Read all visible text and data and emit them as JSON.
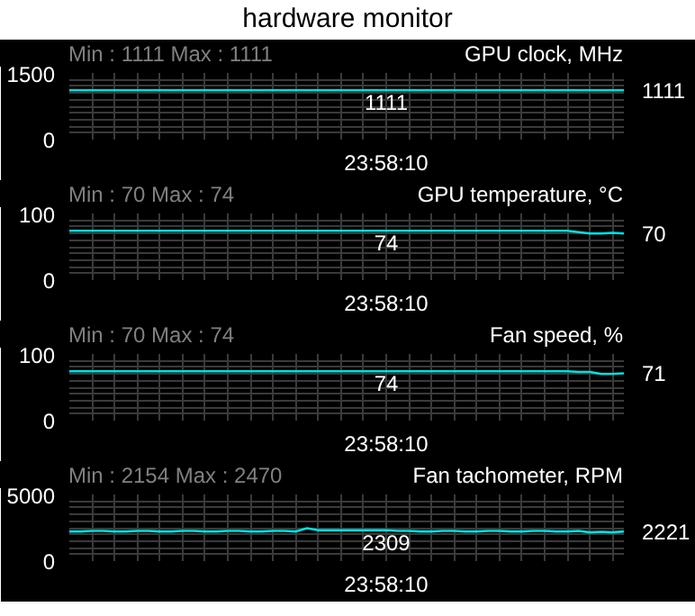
{
  "chart_data": [
    {
      "type": "line",
      "title": "hardware monitor",
      "subtitle": "GPU clock, MHz",
      "annotations": [
        "Min : 1111   Max : 1111",
        "23:58:10"
      ],
      "categories": [
        null,
        null,
        null,
        null,
        null,
        null,
        null,
        null,
        null,
        null,
        null,
        null,
        null,
        null,
        null,
        null,
        null,
        null,
        null,
        null,
        null,
        null,
        null,
        null,
        null,
        null,
        null,
        null,
        null,
        null,
        null,
        null,
        null,
        null,
        null,
        null,
        null,
        null,
        null,
        null,
        null,
        null,
        null,
        null,
        null,
        null,
        null,
        null,
        null,
        null
      ],
      "values": [
        1111,
        1111,
        1111,
        1111,
        1111,
        1111,
        1111,
        1111,
        1111,
        1111,
        1111,
        1111,
        1111,
        1111,
        1111,
        1111,
        1111,
        1111,
        1111,
        1111,
        1111,
        1111,
        1111,
        1111,
        1111,
        1111,
        1111,
        1111,
        1111,
        1111,
        1111,
        1111,
        1111,
        1111,
        1111,
        1111,
        1111,
        1111,
        1111,
        1111,
        1111,
        1111,
        1111,
        1111,
        1111,
        1111,
        1111,
        1111,
        1111,
        1111
      ],
      "value_labels": [
        null,
        null,
        null,
        null,
        null,
        null,
        null,
        null,
        null,
        null,
        null,
        null,
        null,
        null,
        null,
        null,
        null,
        null,
        null,
        null,
        null,
        null,
        null,
        null,
        null,
        null,
        null,
        null,
        "1111",
        null,
        null,
        null,
        null,
        null,
        null,
        null,
        null,
        null,
        null,
        null,
        null,
        null,
        null,
        null,
        null,
        null,
        null,
        null,
        null,
        "1111"
      ],
      "color": "#00e0e0",
      "ylim": [
        0,
        1500
      ],
      "yticks": [
        0,
        {
          "value": 150,
          "label": null
        },
        {
          "value": 300,
          "label": null
        },
        {
          "value": 450,
          "label": null
        },
        {
          "value": 600,
          "label": null
        },
        {
          "value": 750,
          "label": null
        },
        {
          "value": 900,
          "label": null
        },
        {
          "value": 1050,
          "label": null
        },
        {
          "value": 1200,
          "label": null
        },
        {
          "value": 1350,
          "label": null
        },
        1500
      ],
      "grid": true
    },
    {
      "type": "line",
      "subtitle": "GPU temperature, °C",
      "annotations": [
        "Min : 70   Max : 74",
        "23:58:10"
      ],
      "categories": [
        null,
        null,
        null,
        null,
        null,
        null,
        null,
        null,
        null,
        null,
        null,
        null,
        null,
        null,
        null,
        null,
        null,
        null,
        null,
        null,
        null,
        null,
        null,
        null,
        null,
        null,
        null,
        null,
        null,
        null,
        null,
        null,
        null,
        null,
        null,
        null,
        null,
        null,
        null,
        null,
        null,
        null,
        null,
        null,
        null,
        null,
        null,
        null,
        null,
        null
      ],
      "values": [
        74,
        74,
        74,
        74,
        74,
        74,
        74,
        74,
        74,
        74,
        74,
        74,
        74,
        74,
        74,
        74,
        74,
        74,
        74,
        74,
        74,
        74,
        74,
        74,
        74,
        74,
        74,
        74,
        74,
        74,
        74,
        74,
        74,
        74,
        74,
        74,
        74,
        74,
        74,
        74,
        74,
        74,
        74,
        74,
        74,
        72,
        70,
        70,
        71,
        70
      ],
      "value_labels": [
        null,
        null,
        null,
        null,
        null,
        null,
        null,
        null,
        null,
        null,
        null,
        null,
        null,
        null,
        null,
        null,
        null,
        null,
        null,
        null,
        null,
        null,
        null,
        null,
        null,
        null,
        null,
        null,
        "74",
        null,
        null,
        null,
        null,
        null,
        null,
        null,
        null,
        null,
        null,
        null,
        null,
        null,
        null,
        null,
        null,
        null,
        null,
        null,
        null,
        "70"
      ],
      "color": "#00e0e0",
      "ylim": [
        0,
        100
      ],
      "yticks": [
        0,
        {
          "value": 10,
          "label": null
        },
        {
          "value": 20,
          "label": null
        },
        {
          "value": 30,
          "label": null
        },
        {
          "value": 40,
          "label": null
        },
        {
          "value": 50,
          "label": null
        },
        {
          "value": 60,
          "label": null
        },
        {
          "value": 70,
          "label": null
        },
        {
          "value": 80,
          "label": null
        },
        {
          "value": 90,
          "label": null
        },
        100
      ],
      "grid": true
    },
    {
      "type": "line",
      "subtitle": "Fan speed, %",
      "annotations": [
        "Min : 70   Max : 74",
        "23:58:10"
      ],
      "categories": [
        null,
        null,
        null,
        null,
        null,
        null,
        null,
        null,
        null,
        null,
        null,
        null,
        null,
        null,
        null,
        null,
        null,
        null,
        null,
        null,
        null,
        null,
        null,
        null,
        null,
        null,
        null,
        null,
        null,
        null,
        null,
        null,
        null,
        null,
        null,
        null,
        null,
        null,
        null,
        null,
        null,
        null,
        null,
        null,
        null,
        null,
        null,
        null,
        null,
        null
      ],
      "values": [
        74,
        74,
        74,
        74,
        74,
        74,
        74,
        74,
        74,
        74,
        74,
        74,
        74,
        74,
        74,
        74,
        74,
        74,
        74,
        74,
        74,
        74,
        74,
        74,
        74,
        74,
        74,
        74,
        74,
        74,
        74,
        74,
        74,
        74,
        74,
        74,
        74,
        74,
        74,
        74,
        74,
        74,
        74,
        74,
        74,
        73,
        73,
        70,
        70,
        71
      ],
      "value_labels": [
        null,
        null,
        null,
        null,
        null,
        null,
        null,
        null,
        null,
        null,
        null,
        null,
        null,
        null,
        null,
        null,
        null,
        null,
        null,
        null,
        null,
        null,
        null,
        null,
        null,
        null,
        null,
        null,
        "74",
        null,
        null,
        null,
        null,
        null,
        null,
        null,
        null,
        null,
        null,
        null,
        null,
        null,
        null,
        null,
        null,
        null,
        null,
        null,
        null,
        "71"
      ],
      "color": "#00e0e0",
      "ylim": [
        0,
        100
      ],
      "yticks": [
        0,
        {
          "value": 10,
          "label": null
        },
        {
          "value": 20,
          "label": null
        },
        {
          "value": 30,
          "label": null
        },
        {
          "value": 40,
          "label": null
        },
        {
          "value": 50,
          "label": null
        },
        {
          "value": 60,
          "label": null
        },
        {
          "value": 70,
          "label": null
        },
        {
          "value": 80,
          "label": null
        },
        {
          "value": 90,
          "label": null
        },
        100
      ],
      "grid": true
    },
    {
      "type": "line",
      "subtitle": "Fan tachometer, RPM",
      "annotations": [
        "Min : 2154   Max : 2470",
        "23:58:10"
      ],
      "categories": [
        null,
        null,
        null,
        null,
        null,
        null,
        null,
        null,
        null,
        null,
        null,
        null,
        null,
        null,
        null,
        null,
        null,
        null,
        null,
        null,
        null,
        null,
        null,
        null,
        null,
        null,
        null,
        null,
        null,
        null,
        null,
        null,
        null,
        null,
        null,
        null,
        null,
        null,
        null,
        null,
        null,
        null,
        null,
        null,
        null,
        null,
        null,
        null,
        null,
        null
      ],
      "values": [
        2220,
        2220,
        2260,
        2260,
        2220,
        2220,
        2260,
        2260,
        2220,
        2220,
        2260,
        2260,
        2220,
        2220,
        2260,
        2260,
        2220,
        2220,
        2260,
        2260,
        2220,
        2470,
        2309,
        2309,
        2309,
        2309,
        2309,
        2309,
        2309,
        2260,
        2260,
        2220,
        2220,
        2260,
        2260,
        2220,
        2220,
        2260,
        2260,
        2220,
        2220,
        2260,
        2260,
        2220,
        2220,
        2260,
        2154,
        2200,
        2154,
        2221
      ],
      "value_labels": [
        null,
        null,
        null,
        null,
        null,
        null,
        null,
        null,
        null,
        null,
        null,
        null,
        null,
        null,
        null,
        null,
        null,
        null,
        null,
        null,
        null,
        null,
        null,
        null,
        null,
        null,
        null,
        null,
        "2309",
        null,
        null,
        null,
        null,
        null,
        null,
        null,
        null,
        null,
        null,
        null,
        null,
        null,
        null,
        null,
        null,
        null,
        null,
        null,
        null,
        "2221"
      ],
      "color": "#00e0e0",
      "ylim": [
        0,
        5000
      ],
      "yticks": [
        0,
        {
          "value": 500,
          "label": null
        },
        {
          "value": 1000,
          "label": null
        },
        {
          "value": 1500,
          "label": null
        },
        {
          "value": 2000,
          "label": null
        },
        {
          "value": 2500,
          "label": null
        },
        {
          "value": 3000,
          "label": null
        },
        {
          "value": 3500,
          "label": null
        },
        {
          "value": 4000,
          "label": null
        },
        {
          "value": 4500,
          "label": null
        },
        5000
      ],
      "grid": true
    }
  ]
}
